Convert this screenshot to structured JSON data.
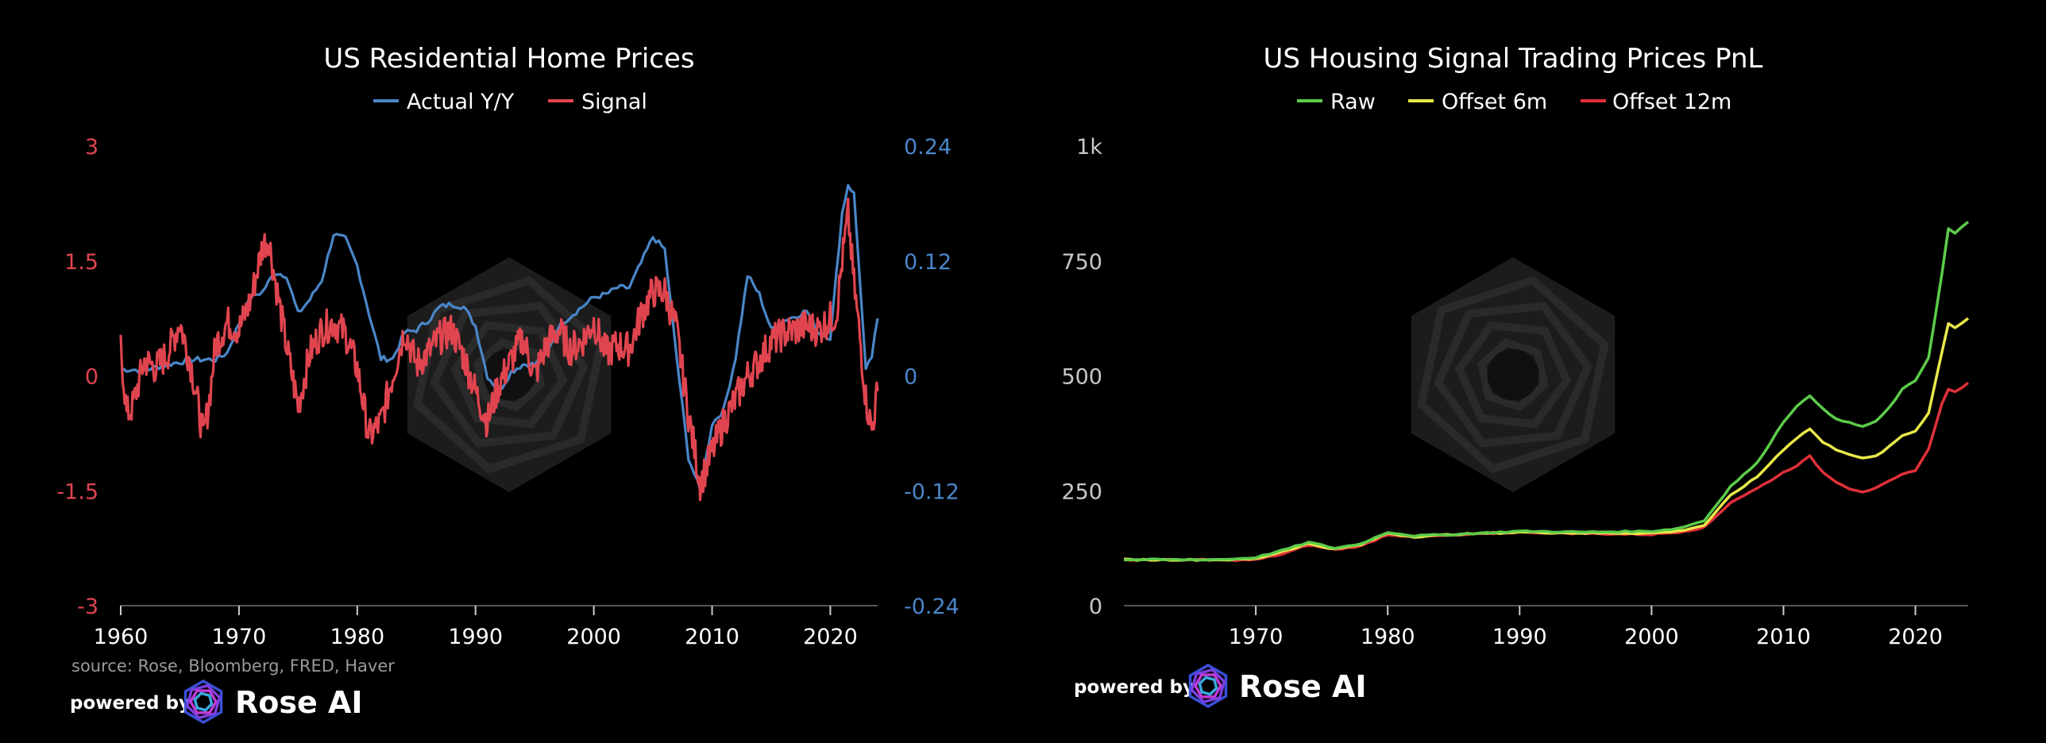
{
  "colors": {
    "background": "#000000",
    "actual": "#4a86c8",
    "signal": "#e0454f",
    "raw": "#5ccb4a",
    "offset6": "#e8e84a",
    "offset12": "#e0303a",
    "left_axis_text": "#e0454f",
    "right_axis_text": "#4a86c8",
    "neutral_axis_text": "#c8c8c8",
    "watermark": "#1c1c1c"
  },
  "footer": {
    "source": "source: Rose, Bloomberg, FRED, Haver",
    "powered_by": "powered by",
    "brand": "Rose AI",
    "logo_icon": "rose-ai-logo-icon"
  },
  "chart_data": [
    {
      "type": "line",
      "title": "US Residential Home Prices",
      "legend_position": "top-center",
      "grid": false,
      "x_ticks": [
        "1960",
        "1970",
        "1980",
        "1990",
        "2000",
        "2010",
        "2020"
      ],
      "xlim": [
        1960,
        2024
      ],
      "y_left": {
        "ticks": [
          "3",
          "1.5",
          "0",
          "-1.5",
          "-3"
        ],
        "lim": [
          -3,
          3
        ]
      },
      "y_right": {
        "ticks": [
          "0.24",
          "0.12",
          "0",
          "-0.12",
          "-0.24"
        ],
        "lim": [
          -0.24,
          0.24
        ]
      },
      "series": [
        {
          "name": "Actual Y/Y",
          "axis": "right",
          "color": "#4a86c8",
          "x": [
            1960,
            1962,
            1964,
            1966,
            1968,
            1969,
            1970,
            1971,
            1972,
            1973,
            1974,
            1975,
            1976,
            1977,
            1978,
            1978.5,
            1979,
            1980,
            1981,
            1982,
            1983,
            1984,
            1985,
            1986,
            1987,
            1988,
            1989,
            1990,
            1991,
            1992,
            1993,
            1994,
            1995,
            1996,
            1997,
            1998,
            1999,
            2000,
            2001,
            2002,
            2003,
            2004,
            2005,
            2006,
            2007,
            2008,
            2009,
            2010,
            2011,
            2012,
            2013,
            2014,
            2015,
            2016,
            2017,
            2018,
            2019,
            2020,
            2021,
            2021.5,
            2022,
            2022.5,
            2023,
            2023.5,
            2024
          ],
          "values": [
            0.007,
            0.006,
            0.012,
            0.017,
            0.017,
            0.024,
            0.055,
            0.082,
            0.088,
            0.108,
            0.105,
            0.065,
            0.08,
            0.1,
            0.148,
            0.145,
            0.143,
            0.115,
            0.065,
            0.018,
            0.018,
            0.045,
            0.048,
            0.058,
            0.072,
            0.075,
            0.072,
            0.052,
            0.0,
            -0.016,
            0.004,
            0.012,
            0.012,
            0.022,
            0.052,
            0.062,
            0.072,
            0.082,
            0.085,
            0.092,
            0.092,
            0.118,
            0.145,
            0.132,
            0.02,
            -0.085,
            -0.12,
            -0.05,
            -0.035,
            0.02,
            0.105,
            0.085,
            0.048,
            0.058,
            0.062,
            0.068,
            0.045,
            0.04,
            0.17,
            0.2,
            0.19,
            0.1,
            0.005,
            0.02,
            0.06
          ]
        },
        {
          "name": "Signal",
          "axis": "left",
          "color": "#e0454f",
          "x": [
            1960,
            1960.5,
            1961,
            1962,
            1963,
            1964,
            1965,
            1966,
            1967,
            1967.5,
            1968,
            1969,
            1970,
            1971,
            1972,
            1972.5,
            1973,
            1974,
            1975,
            1976,
            1977,
            1978,
            1979,
            1980,
            1981,
            1982,
            1983,
            1984,
            1985,
            1986,
            1987,
            1988,
            1989,
            1990,
            1991,
            1992,
            1993,
            1994,
            1995,
            1996,
            1997,
            1998,
            1999,
            2000,
            2001,
            2002,
            2003,
            2004,
            2005,
            2006,
            2007,
            2008,
            2009,
            2010,
            2011,
            2012,
            2013,
            2014,
            2015,
            2016,
            2017,
            2018,
            2019,
            2020,
            2020.5,
            2021,
            2021.5,
            2022,
            2022.5,
            2023,
            2023.5,
            2024
          ],
          "values": [
            0.4,
            -0.5,
            -0.4,
            0.2,
            0.1,
            0.3,
            0.7,
            0.1,
            -0.8,
            -0.3,
            0.4,
            0.7,
            0.6,
            1.0,
            1.7,
            1.8,
            1.3,
            0.4,
            -0.4,
            0.3,
            0.6,
            0.7,
            0.55,
            0.1,
            -0.8,
            -0.6,
            0.0,
            0.6,
            0.15,
            0.3,
            0.5,
            0.6,
            0.25,
            -0.2,
            -0.6,
            -0.1,
            0.2,
            0.5,
            0.0,
            0.4,
            0.6,
            0.35,
            0.45,
            0.7,
            0.3,
            0.4,
            0.35,
            0.8,
            1.1,
            1.1,
            0.6,
            -0.5,
            -1.4,
            -1.0,
            -0.6,
            -0.3,
            0.0,
            0.2,
            0.45,
            0.55,
            0.6,
            0.65,
            0.6,
            0.75,
            0.8,
            1.5,
            2.1,
            1.2,
            0.5,
            -0.3,
            -0.7,
            -0.2
          ]
        }
      ]
    },
    {
      "type": "line",
      "title": "US Housing Signal Trading Prices PnL",
      "legend_position": "top-center",
      "grid": false,
      "x_ticks": [
        "1970",
        "1980",
        "1990",
        "2000",
        "2010",
        "2020"
      ],
      "xlim": [
        1960,
        2024
      ],
      "y_left": {
        "ticks": [
          "1k",
          "750",
          "500",
          "250",
          "0"
        ],
        "lim": [
          0,
          1000
        ]
      },
      "series": [
        {
          "name": "Raw",
          "color": "#5ccb4a",
          "x": [
            1960,
            1965,
            1968,
            1970,
            1972,
            1974,
            1976,
            1978,
            1980,
            1982,
            1985,
            1990,
            1995,
            2000,
            2002,
            2004,
            2006,
            2008,
            2010,
            2011,
            2012,
            2013,
            2014,
            2015,
            2016,
            2017,
            2018,
            2019,
            2020,
            2021,
            2022,
            2022.5,
            2023,
            2024
          ],
          "values": [
            100,
            100,
            101,
            105,
            120,
            138,
            125,
            135,
            160,
            152,
            155,
            162,
            160,
            162,
            168,
            185,
            260,
            310,
            400,
            435,
            455,
            430,
            405,
            398,
            390,
            400,
            430,
            470,
            490,
            540,
            720,
            820,
            810,
            835
          ]
        },
        {
          "name": "Offset 6m",
          "color": "#e8e84a",
          "x": [
            1960,
            1965,
            1968,
            1970,
            1972,
            1974,
            1976,
            1978,
            1980,
            1982,
            1985,
            1990,
            1995,
            2000,
            2002,
            2004,
            2006,
            2008,
            2010,
            2011,
            2012,
            2013,
            2014,
            2015,
            2016,
            2017,
            2018,
            2019,
            2020,
            2021,
            2022,
            2022.5,
            2023,
            2024
          ],
          "values": [
            100,
            100,
            100,
            102,
            118,
            135,
            123,
            133,
            158,
            150,
            155,
            160,
            158,
            158,
            162,
            175,
            240,
            280,
            340,
            365,
            385,
            355,
            340,
            330,
            320,
            325,
            345,
            370,
            380,
            420,
            550,
            615,
            605,
            625
          ]
        },
        {
          "name": "Offset 12m",
          "color": "#e0303a",
          "x": [
            1960,
            1965,
            1968,
            1970,
            1972,
            1974,
            1976,
            1978,
            1980,
            1982,
            1985,
            1990,
            1995,
            2000,
            2002,
            2004,
            2006,
            2008,
            2010,
            2011,
            2012,
            2013,
            2014,
            2015,
            2016,
            2017,
            2018,
            2019,
            2020,
            2021,
            2022,
            2022.5,
            2023,
            2024
          ],
          "values": [
            100,
            100,
            99,
            100,
            112,
            132,
            122,
            130,
            155,
            150,
            153,
            160,
            157,
            155,
            160,
            170,
            225,
            255,
            290,
            305,
            325,
            290,
            270,
            255,
            248,
            255,
            270,
            285,
            295,
            340,
            440,
            470,
            465,
            485
          ]
        }
      ]
    }
  ]
}
